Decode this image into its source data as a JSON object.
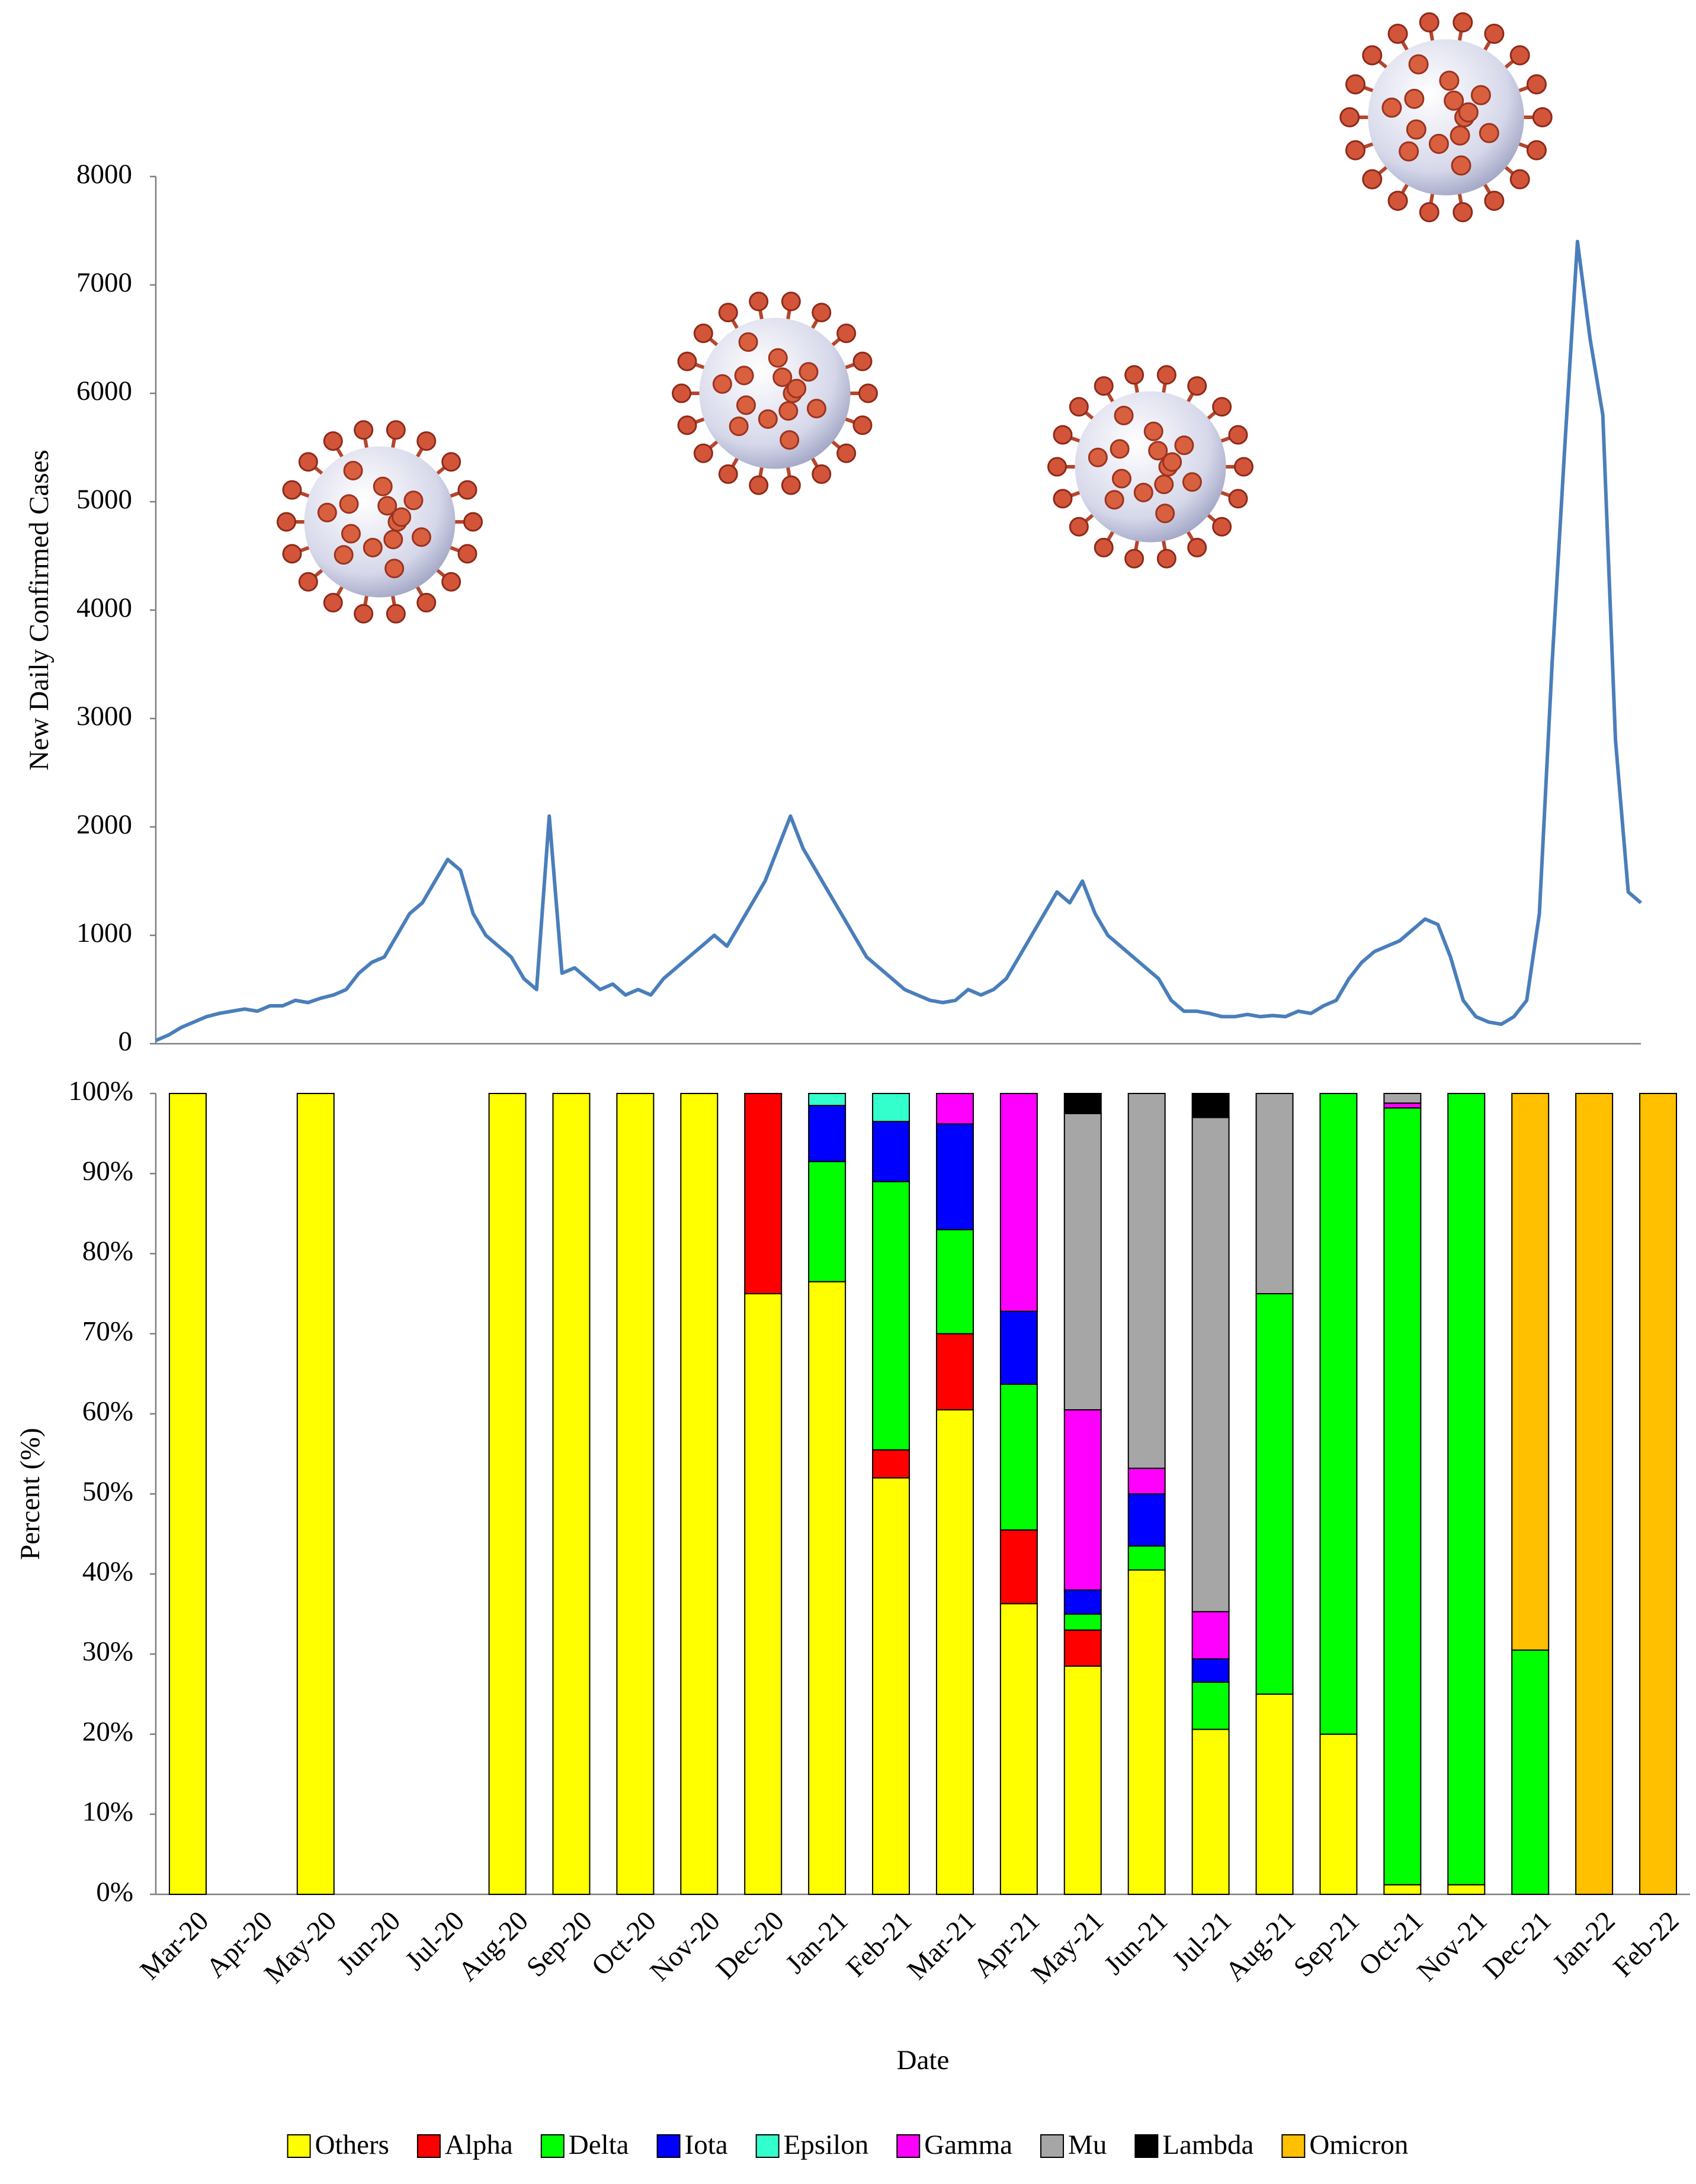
{
  "chart_data": [
    {
      "type": "line",
      "y_label": "New Daily Confirmed Cases",
      "color": "#4a7ebb",
      "ylim": [
        0,
        8000
      ],
      "yticks": [
        0,
        1000,
        2000,
        3000,
        4000,
        5000,
        6000,
        7000,
        8000
      ],
      "values": [
        30,
        80,
        150,
        200,
        250,
        280,
        300,
        320,
        300,
        350,
        350,
        400,
        380,
        420,
        450,
        500,
        650,
        750,
        800,
        1000,
        1200,
        1300,
        1500,
        1700,
        1600,
        1200,
        1000,
        900,
        800,
        600,
        500,
        2100,
        650,
        700,
        600,
        500,
        550,
        450,
        500,
        450,
        600,
        700,
        800,
        900,
        1000,
        900,
        1100,
        1300,
        1500,
        1800,
        2100,
        1800,
        1600,
        1400,
        1200,
        1000,
        800,
        700,
        600,
        500,
        450,
        400,
        380,
        400,
        500,
        450,
        500,
        600,
        800,
        1000,
        1200,
        1400,
        1300,
        1500,
        1200,
        1000,
        900,
        800,
        700,
        600,
        400,
        300,
        300,
        280,
        250,
        250,
        270,
        250,
        260,
        250,
        300,
        280,
        350,
        400,
        600,
        750,
        850,
        900,
        950,
        1050,
        1150,
        1100,
        800,
        400,
        250,
        200,
        180,
        250,
        400,
        1200,
        3500,
        5500,
        7400,
        6500,
        5800,
        2800,
        1400,
        1300
      ]
    },
    {
      "type": "stacked_bar",
      "x_label": "Date",
      "y_label": "Percent  (%)",
      "ylim": [
        0,
        100
      ],
      "yticks": [
        {
          "value": 0,
          "label": "0%"
        },
        {
          "value": 10,
          "label": "10%"
        },
        {
          "value": 20,
          "label": "20%"
        },
        {
          "value": 30,
          "label": "30%"
        },
        {
          "value": 40,
          "label": "40%"
        },
        {
          "value": 50,
          "label": "50%"
        },
        {
          "value": 60,
          "label": "60%"
        },
        {
          "value": 70,
          "label": "70%"
        },
        {
          "value": 80,
          "label": "80%"
        },
        {
          "value": 90,
          "label": "90%"
        },
        {
          "value": 100,
          "label": "100%"
        }
      ],
      "categories": [
        "Mar-20",
        "Apr-20",
        "May-20",
        "Jun-20",
        "Jul-20",
        "Aug-20",
        "Sep-20",
        "Oct-20",
        "Nov-20",
        "Dec-20",
        "Jan-21",
        "Feb-21",
        "Mar-21",
        "Apr-21",
        "May-21",
        "Jun-21",
        "Jul-21",
        "Aug-21",
        "Sep-21",
        "Oct-21",
        "Nov-21",
        "Dec-21",
        "Jan-22",
        "Feb-22"
      ],
      "series": [
        {
          "name": "Others",
          "color": "#ffff00",
          "values": [
            100,
            0,
            100,
            0,
            0,
            100,
            100,
            100,
            100,
            75,
            76.5,
            52,
            60.5,
            36.3,
            28.5,
            40.5,
            20.6,
            25,
            20,
            1.2,
            1.2,
            0,
            0,
            0
          ]
        },
        {
          "name": "Alpha",
          "color": "#ff0000",
          "values": [
            0,
            0,
            0,
            0,
            0,
            0,
            0,
            0,
            0,
            25,
            0,
            3.5,
            9.5,
            9.2,
            4.5,
            0,
            0,
            0,
            0,
            0,
            0,
            0,
            0,
            0
          ]
        },
        {
          "name": "Delta",
          "color": "#00ff00",
          "values": [
            0,
            0,
            0,
            0,
            0,
            0,
            0,
            0,
            0,
            0,
            15,
            33.5,
            13,
            18.2,
            2,
            3,
            5.9,
            50,
            80,
            97,
            98.8,
            30.5,
            0,
            0
          ]
        },
        {
          "name": "Iota",
          "color": "#0000ff",
          "values": [
            0,
            0,
            0,
            0,
            0,
            0,
            0,
            0,
            0,
            0,
            7,
            7.5,
            13.2,
            9.1,
            3,
            6.5,
            2.9,
            0,
            0,
            0,
            0,
            0,
            0,
            0
          ]
        },
        {
          "name": "Epsilon",
          "color": "#33ffcc",
          "values": [
            0,
            0,
            0,
            0,
            0,
            0,
            0,
            0,
            0,
            0,
            1.5,
            3.5,
            0,
            0,
            0,
            0,
            0,
            0,
            0,
            0,
            0,
            0,
            0,
            0
          ]
        },
        {
          "name": "Gamma",
          "color": "#ff00ff",
          "values": [
            0,
            0,
            0,
            0,
            0,
            0,
            0,
            0,
            0,
            0,
            0,
            0,
            3.8,
            27.2,
            22.5,
            3.2,
            5.9,
            0,
            0,
            0.6,
            0,
            0,
            0,
            0
          ]
        },
        {
          "name": "Mu",
          "color": "#a6a6a6",
          "values": [
            0,
            0,
            0,
            0,
            0,
            0,
            0,
            0,
            0,
            0,
            0,
            0,
            0,
            0,
            37,
            46.8,
            61.7,
            25,
            0,
            1.2,
            0,
            0,
            0,
            0
          ]
        },
        {
          "name": "Lambda",
          "color": "#000000",
          "values": [
            0,
            0,
            0,
            0,
            0,
            0,
            0,
            0,
            0,
            0,
            0,
            0,
            0,
            0,
            2.5,
            0,
            3,
            0,
            0,
            0,
            0,
            0,
            0,
            0
          ]
        },
        {
          "name": "Omicron",
          "color": "#ffc000",
          "values": [
            0,
            0,
            0,
            0,
            0,
            0,
            0,
            0,
            0,
            0,
            0,
            0,
            0,
            0,
            0,
            0,
            0,
            0,
            0,
            0,
            0,
            69.5,
            100,
            100
          ]
        }
      ]
    }
  ]
}
